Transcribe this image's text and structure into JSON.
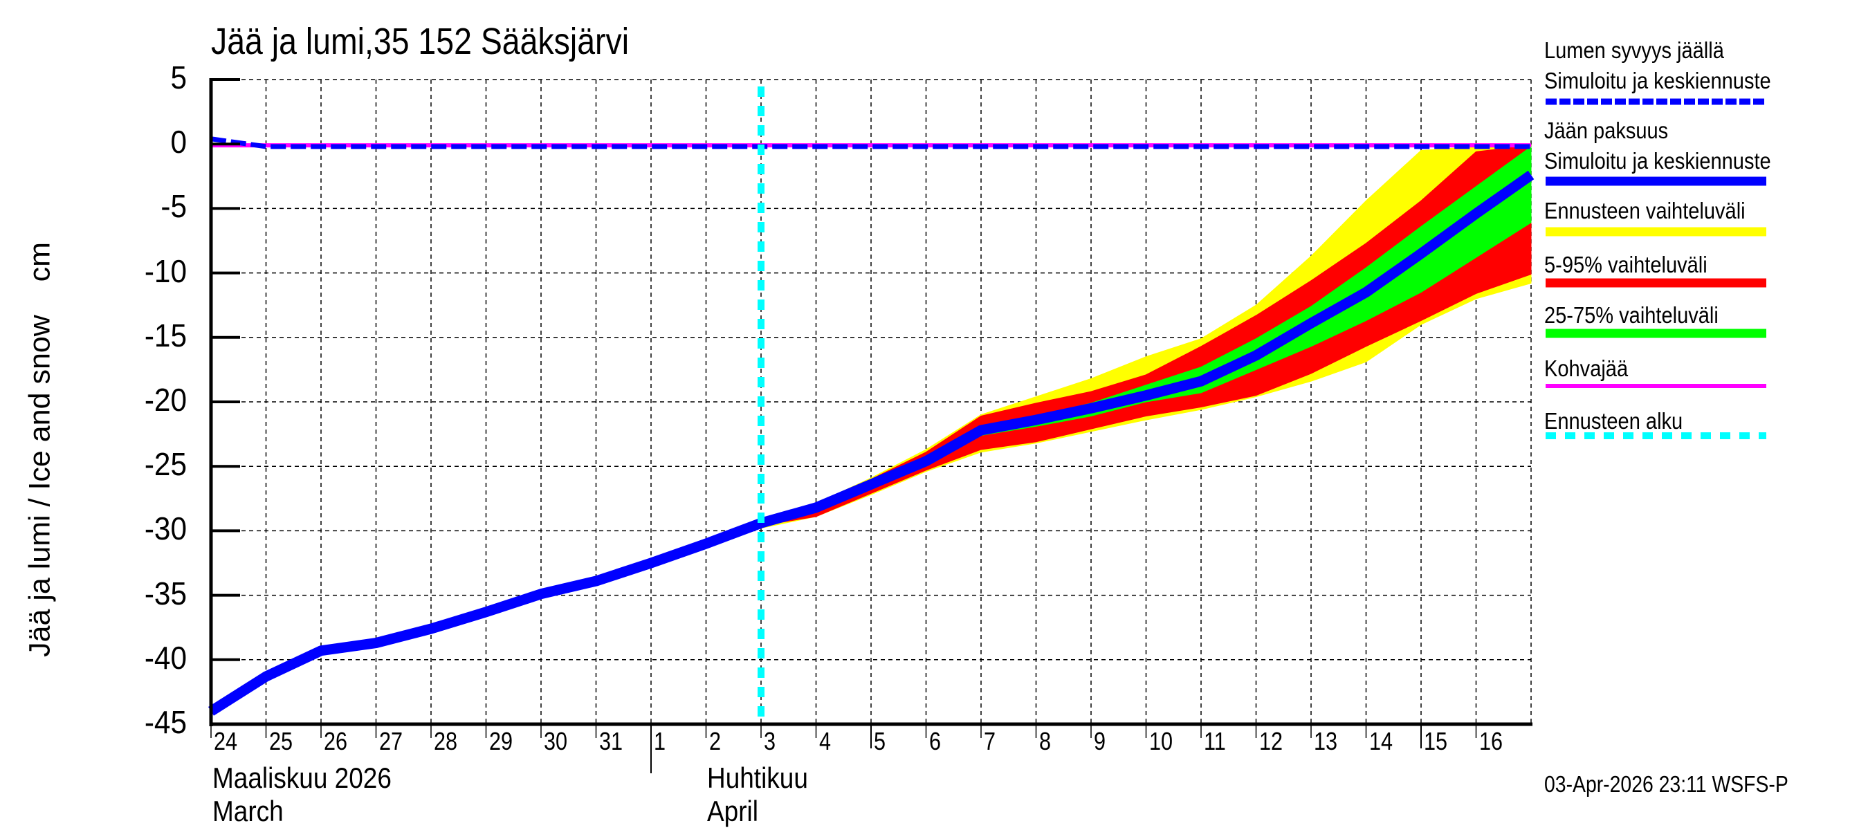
{
  "title": "Jää ja lumi,35 152 Sääksjärvi",
  "y_axis_label": "Jää ja lumi / Ice and snow    cm",
  "timestamp": "03-Apr-2026 23:11 WSFS-P",
  "months": [
    {
      "fi": "Maaliskuu 2026",
      "en": "March"
    },
    {
      "fi": "Huhtikuu",
      "en": "April"
    }
  ],
  "legend": [
    {
      "label": "Lumen syvyys jäällä",
      "sublabel": "Simuloitu ja keskiennuste",
      "color": "#0000ff",
      "style": "dashed"
    },
    {
      "label": "Jään paksuus",
      "sublabel": "Simuloitu ja keskiennuste",
      "color": "#0000ff",
      "style": "solid"
    },
    {
      "label": "Ennusteen vaihteluväli",
      "color": "#ffff00",
      "style": "band"
    },
    {
      "label": "5-95% vaihteluväli",
      "color": "#ff0000",
      "style": "band"
    },
    {
      "label": "25-75% vaihteluväli",
      "color": "#00ff00",
      "style": "band"
    },
    {
      "label": "Kohvajää",
      "color": "#ff00ff",
      "style": "thin"
    },
    {
      "label": "Ennusteen alku",
      "color": "#00ffff",
      "style": "dotted"
    }
  ],
  "chart_data": {
    "type": "line",
    "title": "Jää ja lumi,35 152 Sääksjärvi",
    "xlabel": "Maaliskuu 2026 / March — Huhtikuu / April",
    "ylabel": "Jää ja lumi / Ice and snow cm",
    "ylim": [
      -45,
      5
    ],
    "yticks": [
      5,
      0,
      -5,
      -10,
      -15,
      -20,
      -25,
      -30,
      -35,
      -40,
      -45
    ],
    "x_tick_labels": [
      "24",
      "25",
      "26",
      "27",
      "28",
      "29",
      "30",
      "31",
      "1",
      "2",
      "3",
      "4",
      "5",
      "6",
      "7",
      "8",
      "9",
      "10",
      "11",
      "12",
      "13",
      "14",
      "15",
      "16"
    ],
    "x_range_days": [
      0,
      24
    ],
    "grid": true,
    "legend_position": "right",
    "forecast_start_day": 10,
    "month_separator_day": 8,
    "week_tick_days": [
      8,
      12,
      22
    ],
    "x": [
      0,
      1,
      2,
      3,
      4,
      5,
      6,
      7,
      8,
      9,
      10,
      11,
      12,
      13,
      14,
      15,
      16,
      17,
      18,
      19,
      20,
      21,
      22,
      23,
      24
    ],
    "x_dates": [
      "2026-03-24",
      "2026-03-25",
      "2026-03-26",
      "2026-03-27",
      "2026-03-28",
      "2026-03-29",
      "2026-03-30",
      "2026-03-31",
      "2026-04-01",
      "2026-04-02",
      "2026-04-03",
      "2026-04-04",
      "2026-04-05",
      "2026-04-06",
      "2026-04-07",
      "2026-04-08",
      "2026-04-09",
      "2026-04-10",
      "2026-04-11",
      "2026-04-12",
      "2026-04-13",
      "2026-04-14",
      "2026-04-15",
      "2026-04-16",
      "2026-04-17"
    ],
    "series": [
      {
        "name": "Jään paksuus (Simuloitu ja keskiennuste)",
        "color": "#0000ff",
        "values": [
          -44.0,
          -41.3,
          -39.3,
          -38.7,
          -37.6,
          -36.3,
          -34.9,
          -33.9,
          -32.5,
          -31.0,
          -29.4,
          -28.2,
          -26.4,
          -24.6,
          -22.2,
          -21.4,
          -20.5,
          -19.5,
          -18.4,
          -16.4,
          -13.9,
          -11.5,
          -8.5,
          -5.4,
          -2.4
        ]
      },
      {
        "name": "Lumen syvyys jäällä (Simuloitu ja keskiennuste)",
        "color": "#0000ff",
        "style": "dashed",
        "values": [
          0.4,
          -0.2,
          -0.2,
          -0.2,
          -0.2,
          -0.2,
          -0.2,
          -0.2,
          -0.2,
          -0.2,
          -0.2,
          -0.2,
          -0.2,
          -0.2,
          -0.2,
          -0.2,
          -0.2,
          -0.2,
          -0.2,
          -0.2,
          -0.2,
          -0.2,
          -0.2,
          -0.2,
          -0.2
        ]
      },
      {
        "name": "Kohvajää",
        "color": "#ff00ff",
        "values": [
          -0.1,
          -0.1,
          -0.1,
          -0.1,
          -0.1,
          -0.1,
          -0.1,
          -0.1,
          -0.1,
          -0.1,
          -0.1,
          -0.1,
          -0.1,
          -0.1,
          -0.1,
          -0.1,
          -0.1,
          -0.1,
          -0.1,
          -0.1,
          -0.1,
          -0.1,
          -0.1,
          -0.1,
          -0.1
        ]
      }
    ],
    "bands": [
      {
        "name": "Ennusteen vaihteluväli",
        "color": "#ffff00",
        "x": [
          10,
          11,
          12,
          13,
          14,
          15,
          16,
          17,
          18,
          19,
          20,
          21,
          22,
          23,
          24
        ],
        "upper": [
          -29.3,
          -27.9,
          -25.9,
          -23.7,
          -21.0,
          -19.6,
          -18.2,
          -16.5,
          -15.1,
          -12.5,
          -8.7,
          -4.4,
          -0.5,
          -0.2,
          -0.1
        ],
        "lower": [
          -29.8,
          -28.9,
          -27.2,
          -25.4,
          -23.9,
          -23.2,
          -22.3,
          -21.4,
          -20.6,
          -19.6,
          -18.4,
          -16.9,
          -14.0,
          -12.0,
          -10.8
        ]
      },
      {
        "name": "5-95% vaihteluväli",
        "color": "#ff0000",
        "x": [
          10,
          11,
          12,
          13,
          14,
          15,
          16,
          17,
          18,
          19,
          20,
          21,
          22,
          23,
          24
        ],
        "upper": [
          -29.3,
          -28.0,
          -26.0,
          -23.9,
          -21.1,
          -20.1,
          -19.2,
          -17.9,
          -15.7,
          -13.3,
          -10.6,
          -7.7,
          -4.4,
          -0.6,
          -0.1
        ],
        "lower": [
          -29.6,
          -28.9,
          -27.1,
          -25.3,
          -23.7,
          -23.1,
          -22.1,
          -21.1,
          -20.4,
          -19.5,
          -17.8,
          -15.7,
          -13.7,
          -11.6,
          -10.1
        ]
      },
      {
        "name": "25-75% vaihteluväli",
        "color": "#00ff00",
        "x": [
          10,
          11,
          12,
          13,
          14,
          15,
          16,
          17,
          18,
          19,
          20,
          21,
          22,
          23,
          24
        ],
        "upper": [
          -29.4,
          -28.2,
          -26.3,
          -24.5,
          -21.9,
          -21.1,
          -20.1,
          -18.7,
          -17.3,
          -15.1,
          -12.6,
          -9.6,
          -6.4,
          -3.3,
          -0.2
        ],
        "lower": [
          -29.4,
          -28.3,
          -26.5,
          -24.7,
          -22.6,
          -21.9,
          -21.1,
          -20.0,
          -19.3,
          -17.5,
          -15.7,
          -13.7,
          -11.5,
          -8.8,
          -6.1
        ]
      }
    ]
  }
}
